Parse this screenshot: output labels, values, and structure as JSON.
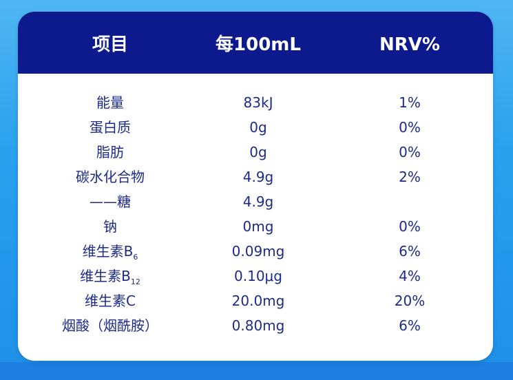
{
  "table": {
    "header": [
      "项目",
      "每100mL",
      "NRV%"
    ],
    "rows": [
      {
        "name": "能量",
        "amount": "83kJ",
        "nrv": "1%"
      },
      {
        "name": "蛋白质",
        "amount": "0g",
        "nrv": "0%"
      },
      {
        "name": "脂肪",
        "amount": "0g",
        "nrv": "0%"
      },
      {
        "name": "碳水化合物",
        "amount": "4.9g",
        "nrv": "2%"
      },
      {
        "name": "——糖",
        "amount": "4.9g"
      },
      {
        "name": "钠",
        "amount": "0mg",
        "nrv": "0%"
      },
      {
        "name": "维生素B",
        "sub": "6",
        "amount": "0.09mg",
        "nrv": "6%"
      },
      {
        "name": "维生素B",
        "sub": "12",
        "amount": "0.10μg",
        "nrv": "4%"
      },
      {
        "name": "维生素C",
        "amount": "20.0mg",
        "nrv": "20%"
      },
      {
        "name": "烟酸（烟酰胺）",
        "amount": "0.80mg",
        "nrv": "6%"
      }
    ]
  }
}
